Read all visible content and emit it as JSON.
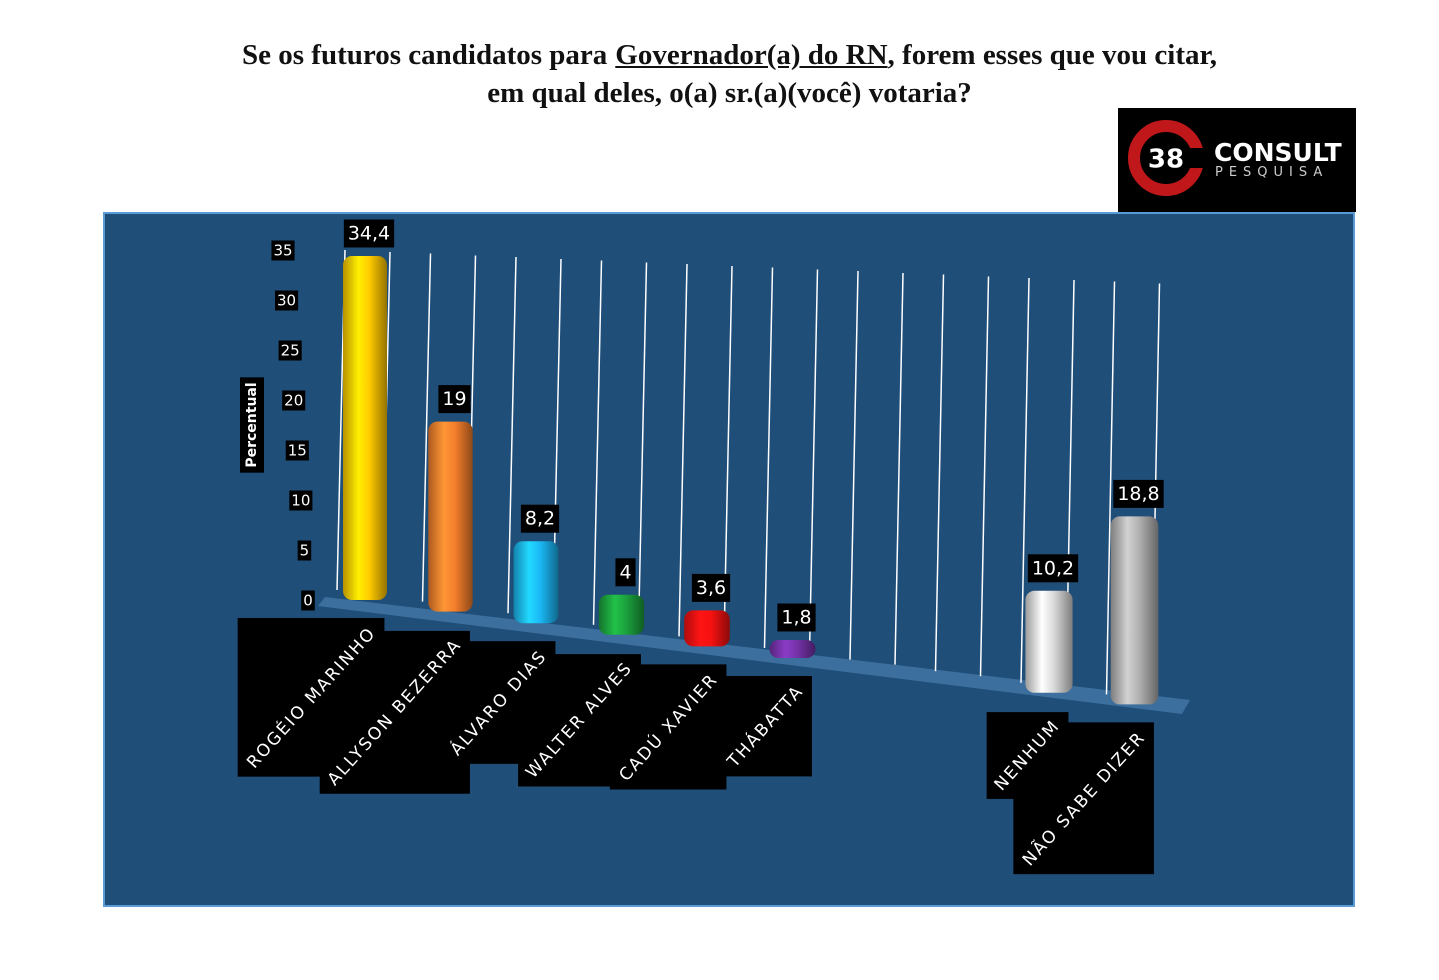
{
  "title": {
    "before": "Se os futuros candidatos para",
    "underlined": "Governador(a) do RN",
    "after": ", forem esses que vou citar,",
    "line2": "em qual deles, o(a) sr.(a)(você) votaria?"
  },
  "logo": {
    "number": "38",
    "name": "CONSULT",
    "tagline": "PESQUISA"
  },
  "chart_data": {
    "type": "bar3d",
    "y_label": "Percentual",
    "categories": [
      "ROGÉIO MARINHO",
      "ALLYSON BEZERRA",
      "ÁLVARO DIAS",
      "WALTER ALVES",
      "CADÚ XAVIER",
      "THÁBATTA",
      null,
      null,
      "NENHUM",
      "NÃO SABE DIZER"
    ],
    "values": [
      34.4,
      19,
      8.2,
      4,
      3.6,
      1.8,
      null,
      null,
      10.2,
      18.8
    ],
    "value_labels": [
      "34,4",
      "19",
      "8,2",
      "4",
      "3,6",
      "1,8",
      null,
      null,
      "10,2",
      "18,8"
    ],
    "colors": [
      "#f5c000",
      "#e8782a",
      "#1aaee8",
      "#1a9a3a",
      "#e81010",
      "#7030a0",
      null,
      null,
      "#d0d0d0",
      "#a8a8a8"
    ],
    "ylim": [
      0,
      35
    ],
    "yticks": [
      0,
      5,
      10,
      15,
      20,
      25,
      30,
      35
    ],
    "grid": true
  }
}
